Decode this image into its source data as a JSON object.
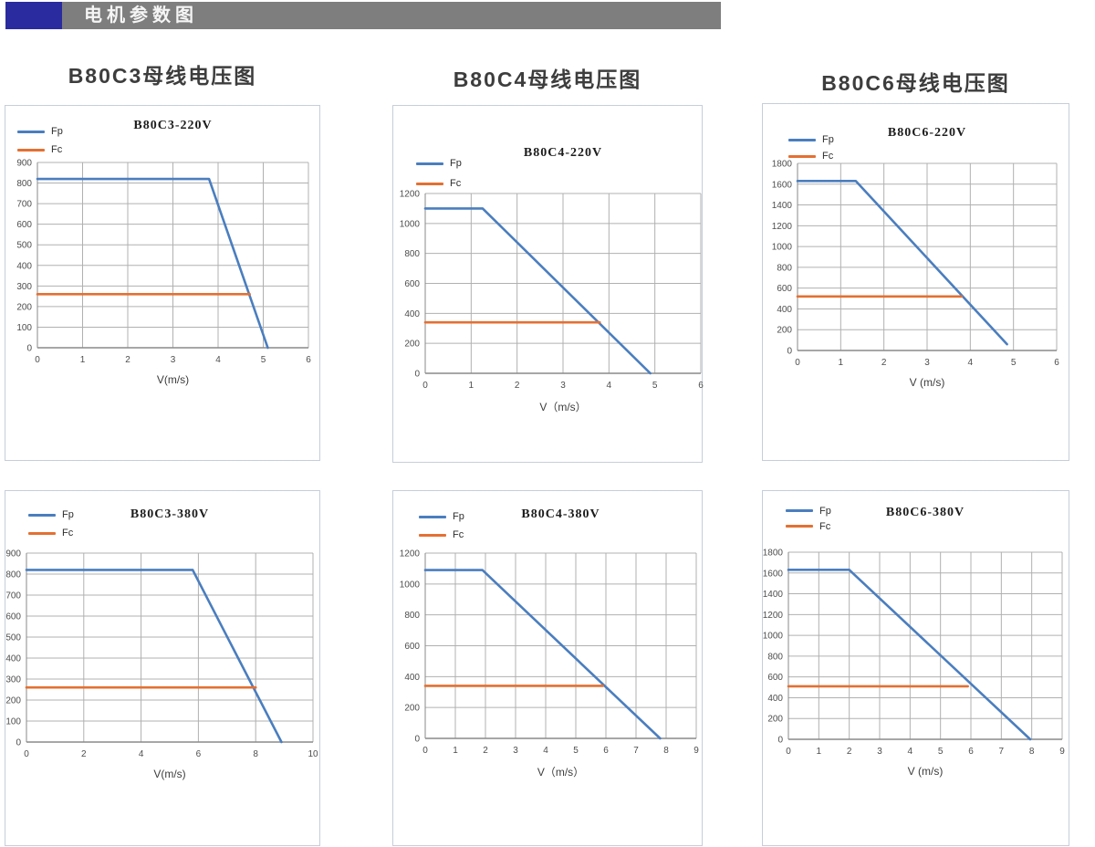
{
  "header": {
    "title": "电机参数图",
    "accent_color": "#2b2ba0",
    "bar_color": "#7e7e7e",
    "text_color": "#f5f5f5"
  },
  "colors": {
    "fp": "#4a7ebf",
    "fc": "#e47032",
    "grid": "#b0b0b0",
    "axis": "#8a8a8a",
    "card_border": "#c6cedc",
    "tick_text": "#4d4d4d"
  },
  "chart_data": [
    {
      "type": "line",
      "page_title": "B80C3母线电压图",
      "title": "B80C3-220V",
      "xlabel": "V(m/s)",
      "xlim": [
        0,
        6
      ],
      "ylim": [
        0,
        900
      ],
      "x_ticks": [
        0,
        1,
        2,
        3,
        4,
        5,
        6
      ],
      "y_ticks": [
        0,
        100,
        200,
        300,
        400,
        500,
        600,
        700,
        800,
        900
      ],
      "grid": true,
      "legend_position": "top-left",
      "series": [
        {
          "name": "Fp",
          "color": "fp",
          "points": [
            [
              0,
              820
            ],
            [
              3.8,
              820
            ],
            [
              5.1,
              0
            ]
          ]
        },
        {
          "name": "Fc",
          "color": "fc",
          "points": [
            [
              0,
              260
            ],
            [
              4.7,
              260
            ]
          ]
        }
      ]
    },
    {
      "type": "line",
      "page_title": "B80C4母线电压图",
      "title": "B80C4-220V",
      "xlabel": "V（m/s）",
      "xlim": [
        0,
        6
      ],
      "ylim": [
        0,
        1200
      ],
      "x_ticks": [
        0,
        1,
        2,
        3,
        4,
        5,
        6
      ],
      "y_ticks": [
        0,
        200,
        400,
        600,
        800,
        1000,
        1200
      ],
      "grid": true,
      "legend_position": "top-left",
      "series": [
        {
          "name": "Fp",
          "color": "fp",
          "points": [
            [
              0,
              1100
            ],
            [
              1.25,
              1100
            ],
            [
              4.9,
              0
            ]
          ]
        },
        {
          "name": "Fc",
          "color": "fc",
          "points": [
            [
              0,
              340
            ],
            [
              3.8,
              340
            ]
          ]
        }
      ]
    },
    {
      "type": "line",
      "page_title": "B80C6母线电压图",
      "title": "B80C6-220V",
      "xlabel": "V (m/s)",
      "xlim": [
        0,
        6
      ],
      "ylim": [
        0,
        1800
      ],
      "x_ticks": [
        0,
        1,
        2,
        3,
        4,
        5,
        6
      ],
      "y_ticks": [
        0,
        200,
        400,
        600,
        800,
        1000,
        1200,
        1400,
        1600,
        1800
      ],
      "grid": true,
      "legend_position": "top-left",
      "series": [
        {
          "name": "Fp",
          "color": "fp",
          "points": [
            [
              0,
              1630
            ],
            [
              1.35,
              1630
            ],
            [
              4.85,
              60
            ]
          ]
        },
        {
          "name": "Fc",
          "color": "fc",
          "points": [
            [
              0,
              520
            ],
            [
              3.8,
              520
            ]
          ]
        }
      ]
    },
    {
      "type": "line",
      "title": "B80C3-380V",
      "xlabel": "V(m/s)",
      "xlim": [
        0,
        10
      ],
      "ylim": [
        0,
        900
      ],
      "x_ticks": [
        0,
        2,
        4,
        6,
        8,
        10
      ],
      "y_ticks": [
        0,
        100,
        200,
        300,
        400,
        500,
        600,
        700,
        800,
        900
      ],
      "grid": true,
      "legend_position": "top-left",
      "series": [
        {
          "name": "Fp",
          "color": "fp",
          "points": [
            [
              0,
              820
            ],
            [
              5.8,
              820
            ],
            [
              8.9,
              0
            ]
          ]
        },
        {
          "name": "Fc",
          "color": "fc",
          "points": [
            [
              0,
              260
            ],
            [
              8.0,
              260
            ]
          ]
        }
      ]
    },
    {
      "type": "line",
      "title": "B80C4-380V",
      "xlabel": "V（m/s）",
      "xlim": [
        0,
        9
      ],
      "ylim": [
        0,
        1200
      ],
      "x_ticks": [
        0,
        1,
        2,
        3,
        4,
        5,
        6,
        7,
        8,
        9
      ],
      "y_ticks": [
        0,
        200,
        400,
        600,
        800,
        1000,
        1200
      ],
      "grid": true,
      "legend_position": "top-left",
      "series": [
        {
          "name": "Fp",
          "color": "fp",
          "points": [
            [
              0,
              1090
            ],
            [
              1.9,
              1090
            ],
            [
              7.8,
              0
            ]
          ]
        },
        {
          "name": "Fc",
          "color": "fc",
          "points": [
            [
              0,
              340
            ],
            [
              5.9,
              340
            ]
          ]
        }
      ]
    },
    {
      "type": "line",
      "title": "B80C6-380V",
      "xlabel": "V (m/s)",
      "xlim": [
        0,
        9
      ],
      "ylim": [
        0,
        1800
      ],
      "x_ticks": [
        0,
        1,
        2,
        3,
        4,
        5,
        6,
        7,
        8,
        9
      ],
      "y_ticks": [
        0,
        200,
        400,
        600,
        800,
        1000,
        1200,
        1400,
        1600,
        1800
      ],
      "grid": true,
      "legend_position": "top-left",
      "series": [
        {
          "name": "Fp",
          "color": "fp",
          "points": [
            [
              0,
              1630
            ],
            [
              2.0,
              1630
            ],
            [
              7.95,
              0
            ]
          ]
        },
        {
          "name": "Fc",
          "color": "fc",
          "points": [
            [
              0,
              510
            ],
            [
              5.9,
              510
            ]
          ]
        }
      ]
    }
  ]
}
